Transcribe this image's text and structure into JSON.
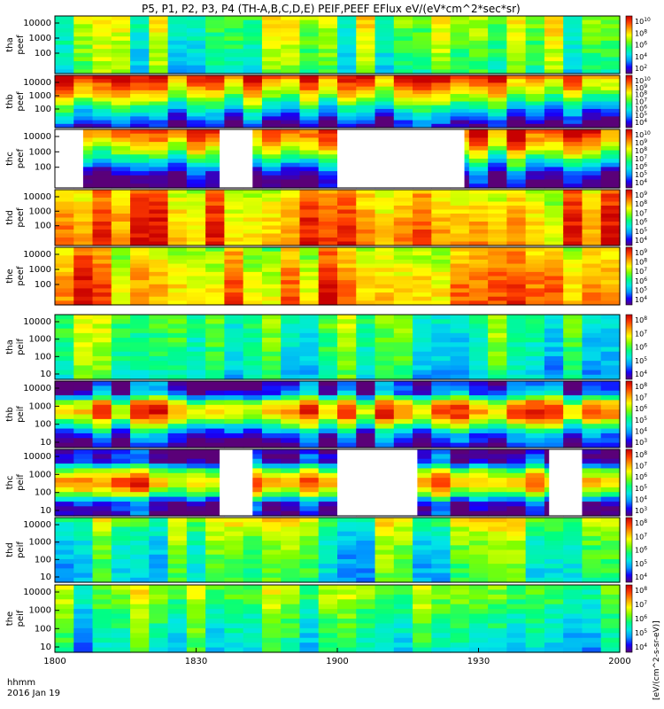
{
  "chart_data": {
    "type": "heatmap",
    "title": "P5, P1, P2, P3, P4 (TH-A,B,C,D,E) PEIF,PEEF EFlux eV/(eV*cm^2*sec*sr)",
    "x_label_line1": "hhmm",
    "x_label_line2": "2016 Jan 19",
    "x_ticks": [
      "1800",
      "1830",
      "1900",
      "1930",
      "2000"
    ],
    "x_range": [
      "1800",
      "2000"
    ],
    "colorbar_unit": "[eV/(cm^2-s-sr-eV)]",
    "colormap": [
      "#5a0078",
      "#1400ff",
      "#0096ff",
      "#00e6e6",
      "#00ff80",
      "#7dff00",
      "#ffff00",
      "#ffa000",
      "#ff3c00",
      "#c80000"
    ],
    "panels": [
      {
        "probe": "tha",
        "product": "peef",
        "y_ticks": [
          "10000",
          "1000",
          "100"
        ],
        "cbar_ticks": [
          "10^10",
          "10^8",
          "10^6",
          "10^4",
          "10^2"
        ],
        "bands": [
          [
            "tha_e",
            0,
            38
          ]
        ]
      },
      {
        "probe": "thb",
        "product": "peef",
        "y_ticks": [
          "10000",
          "1000",
          "100"
        ],
        "cbar_ticks": [
          "10^10",
          "10^9",
          "10^8",
          "10^7",
          "10^6",
          "10^5",
          "10^4"
        ],
        "bands": [
          [
            "thb_e",
            0,
            38
          ]
        ]
      },
      {
        "probe": "thc",
        "product": "peef",
        "y_ticks": [
          "10000",
          "1000",
          "100"
        ],
        "cbar_ticks": [
          "10^10",
          "10^9",
          "10^8",
          "10^7",
          "10^6",
          "10^5",
          "10^4"
        ],
        "bands": [
          [
            "thc_e",
            0,
            38
          ]
        ]
      },
      {
        "probe": "thd",
        "product": "peef",
        "y_ticks": [
          "10000",
          "1000",
          "100"
        ],
        "cbar_ticks": [
          "10^9",
          "10^8",
          "10^7",
          "10^6",
          "10^5",
          "10^4"
        ],
        "bands": [
          [
            "thd_e",
            0,
            38
          ]
        ]
      },
      {
        "probe": "the",
        "product": "peef",
        "y_ticks": [
          "10000",
          "1000",
          "100"
        ],
        "cbar_ticks": [
          "10^9",
          "10^8",
          "10^7",
          "10^6",
          "10^5",
          "10^4"
        ],
        "bands": [
          [
            "the_e",
            0,
            38
          ]
        ]
      },
      {
        "probe": "tha",
        "product": "peif",
        "y_ticks": [
          "10000",
          "1000",
          "100",
          "10"
        ],
        "cbar_ticks": [
          "10^8",
          "10^7",
          "10^6",
          "10^5",
          "10^4"
        ],
        "bands": [
          [
            "tha_i",
            0,
            100
          ]
        ]
      },
      {
        "probe": "thb",
        "product": "peif",
        "y_ticks": [
          "10000",
          "1000",
          "100",
          "10"
        ],
        "cbar_ticks": [
          "10^8",
          "10^7",
          "10^6",
          "10^5",
          "10^4",
          "10^3"
        ],
        "bands": [
          [
            "thb_i",
            0,
            100
          ]
        ]
      },
      {
        "probe": "thc",
        "product": "peif",
        "y_ticks": [
          "10000",
          "1000",
          "100",
          "10"
        ],
        "cbar_ticks": [
          "10^8",
          "10^7",
          "10^6",
          "10^5",
          "10^4",
          "10^3"
        ],
        "bands": [
          [
            "thc_i",
            0,
            100
          ]
        ]
      },
      {
        "probe": "thd",
        "product": "peif",
        "y_ticks": [
          "10000",
          "1000",
          "100",
          "10"
        ],
        "cbar_ticks": [
          "10^8",
          "10^7",
          "10^6",
          "10^5",
          "10^4"
        ],
        "bands": [
          [
            "thd_i",
            0,
            100
          ]
        ]
      },
      {
        "probe": "the",
        "product": "peif",
        "y_ticks": [
          "10000",
          "1000",
          "100",
          "10"
        ],
        "cbar_ticks": [
          "10^8",
          "10^7",
          "10^6",
          "10^5",
          "10^4"
        ],
        "bands": [
          [
            "the_i",
            0,
            100
          ]
        ]
      }
    ],
    "profiles": {
      "tha_e": [
        0.55,
        0.52,
        0.48,
        0.45,
        0.42
      ],
      "thb_e": [
        0.92,
        0.78,
        0.62,
        0.4,
        0.22,
        0.05
      ],
      "thc_e": [
        0.92,
        0.8,
        0.6,
        0.35,
        0.1,
        0.02
      ],
      "thd_e": [
        0.72,
        0.75,
        0.8,
        0.82,
        0.84
      ],
      "the_e": [
        0.68,
        0.72,
        0.78,
        0.8,
        0.82
      ],
      "tha_i": [
        0.5,
        0.48,
        0.46,
        0.44,
        0.42,
        0.38
      ],
      "thb_i": [
        0.08,
        0.2,
        0.72,
        0.82,
        0.5,
        0.18,
        0.05
      ],
      "thc_i": [
        0.05,
        0.1,
        0.62,
        0.82,
        0.6,
        0.1,
        0.05
      ],
      "thd_i": [
        0.58,
        0.5,
        0.45,
        0.42,
        0.4,
        0.38
      ],
      "the_i": [
        0.55,
        0.52,
        0.46,
        0.42,
        0.38,
        0.35
      ]
    },
    "gaps": {
      "thc_e": [
        [
          "1800",
          "1806"
        ],
        [
          "1835",
          "1842"
        ],
        [
          "1900",
          "1927"
        ]
      ],
      "thc_i": [
        [
          "1835",
          "1842"
        ],
        [
          "1900",
          "1917"
        ],
        [
          "1945",
          "1952"
        ]
      ]
    },
    "colorbar_range": [
      0,
      1
    ]
  }
}
